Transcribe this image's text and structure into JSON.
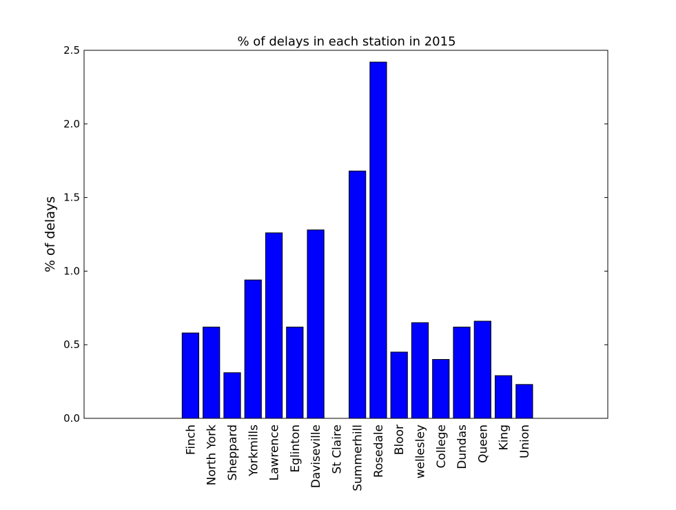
{
  "chart_data": {
    "type": "bar",
    "title": "% of delays in each station in 2015",
    "xlabel": "",
    "ylabel": "% of delays",
    "categories": [
      "Finch",
      "North York",
      "Sheppard",
      "Yorkmills",
      "Lawrence",
      "Eglinton",
      "Daviseville",
      "St Claire",
      "Summerhill",
      "Rosedale",
      "Bloor",
      "wellesley",
      "College",
      "Dundas",
      "Queen",
      "King",
      "Union"
    ],
    "values": [
      0.58,
      0.62,
      0.31,
      0.94,
      1.26,
      0.62,
      1.28,
      0.0,
      1.68,
      2.42,
      0.45,
      0.65,
      0.4,
      0.62,
      0.66,
      0.29,
      0.23
    ],
    "ylim": [
      0,
      2.5
    ],
    "yticks": [
      "0.0",
      "0.5",
      "1.0",
      "1.5",
      "2.0",
      "2.5"
    ],
    "grid": false,
    "legend": "none",
    "colors": {
      "bar": "#0000ff",
      "edge": "#000000"
    }
  }
}
